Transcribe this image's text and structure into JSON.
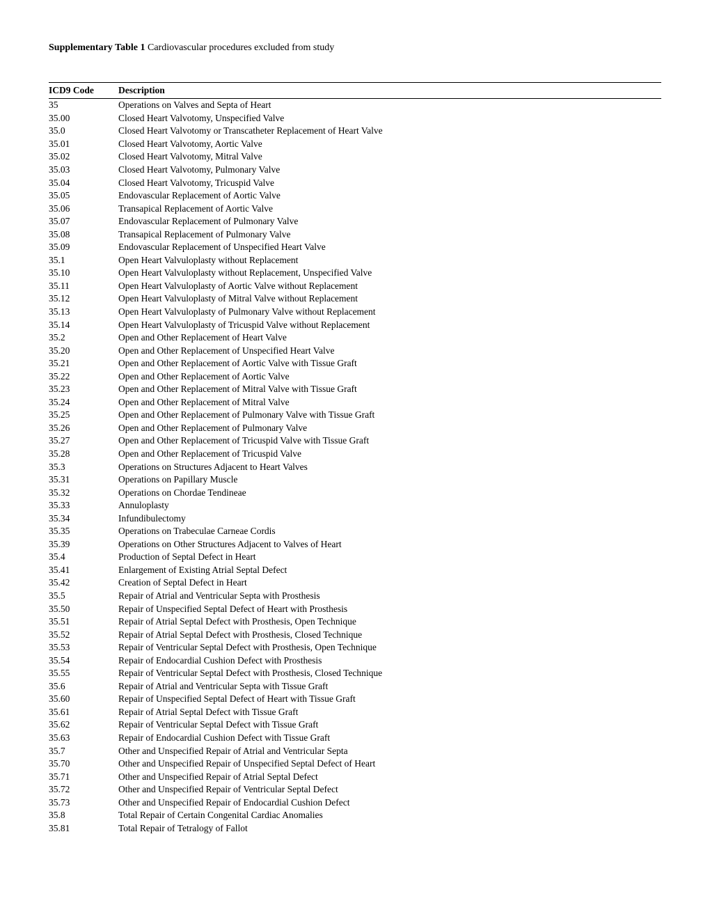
{
  "title_bold": "Supplementary Table 1",
  "title_rest": " Cardiovascular procedures excluded from study",
  "table": {
    "headers": {
      "code": "ICD9 Code",
      "desc": "Description"
    },
    "rows": [
      {
        "code": "35",
        "desc": "Operations on Valves and Septa of Heart"
      },
      {
        "code": "35.00",
        "desc": "Closed Heart Valvotomy, Unspecified Valve"
      },
      {
        "code": "35.0",
        "desc": "Closed Heart Valvotomy or Transcatheter Replacement of Heart Valve"
      },
      {
        "code": "35.01",
        "desc": "Closed Heart Valvotomy, Aortic Valve"
      },
      {
        "code": "35.02",
        "desc": "Closed Heart Valvotomy, Mitral Valve"
      },
      {
        "code": "35.03",
        "desc": "Closed Heart Valvotomy, Pulmonary Valve"
      },
      {
        "code": "35.04",
        "desc": "Closed Heart Valvotomy, Tricuspid Valve"
      },
      {
        "code": "35.05",
        "desc": "Endovascular Replacement of Aortic Valve"
      },
      {
        "code": "35.06",
        "desc": "Transapical Replacement of Aortic Valve"
      },
      {
        "code": "35.07",
        "desc": "Endovascular Replacement of Pulmonary Valve"
      },
      {
        "code": "35.08",
        "desc": "Transapical Replacement of Pulmonary Valve"
      },
      {
        "code": "35.09",
        "desc": "Endovascular Replacement of Unspecified Heart Valve"
      },
      {
        "code": "35.1",
        "desc": "Open Heart Valvuloplasty without Replacement"
      },
      {
        "code": "35.10",
        "desc": "Open Heart Valvuloplasty without Replacement, Unspecified Valve"
      },
      {
        "code": "35.11",
        "desc": "Open Heart Valvuloplasty of Aortic Valve without Replacement"
      },
      {
        "code": "35.12",
        "desc": "Open Heart Valvuloplasty of Mitral Valve without Replacement"
      },
      {
        "code": "35.13",
        "desc": "Open Heart Valvuloplasty of Pulmonary Valve without Replacement"
      },
      {
        "code": "35.14",
        "desc": "Open Heart Valvuloplasty of Tricuspid Valve without Replacement"
      },
      {
        "code": "35.2",
        "desc": "Open and Other Replacement of Heart Valve"
      },
      {
        "code": "35.20",
        "desc": "Open and Other Replacement of Unspecified Heart Valve"
      },
      {
        "code": "35.21",
        "desc": "Open and Other Replacement of Aortic Valve with Tissue Graft"
      },
      {
        "code": "35.22",
        "desc": "Open and Other Replacement of Aortic Valve"
      },
      {
        "code": "35.23",
        "desc": "Open and Other Replacement of Mitral Valve with Tissue Graft"
      },
      {
        "code": "35.24",
        "desc": "Open and Other Replacement of Mitral Valve"
      },
      {
        "code": "35.25",
        "desc": "Open and Other Replacement of Pulmonary Valve with Tissue Graft"
      },
      {
        "code": "35.26",
        "desc": "Open and Other Replacement of Pulmonary Valve"
      },
      {
        "code": "35.27",
        "desc": "Open and Other Replacement of Tricuspid Valve with Tissue Graft"
      },
      {
        "code": "35.28",
        "desc": "Open and Other Replacement of Tricuspid Valve"
      },
      {
        "code": "35.3",
        "desc": "Operations on Structures Adjacent to Heart Valves"
      },
      {
        "code": "35.31",
        "desc": "Operations on Papillary Muscle"
      },
      {
        "code": "35.32",
        "desc": "Operations on Chordae Tendineae"
      },
      {
        "code": "35.33",
        "desc": "Annuloplasty"
      },
      {
        "code": "35.34",
        "desc": "Infundibulectomy"
      },
      {
        "code": "35.35",
        "desc": "Operations on Trabeculae Carneae Cordis"
      },
      {
        "code": "35.39",
        "desc": "Operations on Other Structures Adjacent to Valves of Heart"
      },
      {
        "code": "35.4",
        "desc": "Production of Septal Defect in Heart"
      },
      {
        "code": "35.41",
        "desc": "Enlargement of Existing Atrial Septal Defect"
      },
      {
        "code": "35.42",
        "desc": "Creation of Septal Defect in Heart"
      },
      {
        "code": "35.5",
        "desc": "Repair of Atrial and Ventricular Septa with Prosthesis"
      },
      {
        "code": "35.50",
        "desc": "Repair of Unspecified Septal Defect of Heart with Prosthesis"
      },
      {
        "code": "35.51",
        "desc": "Repair of Atrial Septal Defect with Prosthesis, Open Technique"
      },
      {
        "code": "35.52",
        "desc": "Repair of Atrial Septal Defect with Prosthesis, Closed Technique"
      },
      {
        "code": "35.53",
        "desc": "Repair of Ventricular Septal Defect with Prosthesis, Open Technique"
      },
      {
        "code": "35.54",
        "desc": "Repair of Endocardial Cushion Defect with Prosthesis"
      },
      {
        "code": "35.55",
        "desc": "Repair of Ventricular Septal Defect with Prosthesis, Closed Technique"
      },
      {
        "code": "35.6",
        "desc": "Repair of Atrial and Ventricular Septa with Tissue Graft"
      },
      {
        "code": "35.60",
        "desc": "Repair of Unspecified Septal Defect of Heart with Tissue Graft"
      },
      {
        "code": "35.61",
        "desc": "Repair of Atrial Septal Defect with Tissue Graft"
      },
      {
        "code": "35.62",
        "desc": "Repair of Ventricular Septal Defect with Tissue Graft"
      },
      {
        "code": "35.63",
        "desc": "Repair of Endocardial Cushion Defect with Tissue Graft"
      },
      {
        "code": "35.7",
        "desc": "Other and Unspecified Repair of Atrial and Ventricular Septa"
      },
      {
        "code": "35.70",
        "desc": "Other and Unspecified Repair of Unspecified Septal Defect of Heart"
      },
      {
        "code": "35.71",
        "desc": "Other and Unspecified Repair of Atrial Septal Defect"
      },
      {
        "code": "35.72",
        "desc": "Other and Unspecified Repair of Ventricular Septal Defect"
      },
      {
        "code": "35.73",
        "desc": "Other and Unspecified Repair of Endocardial Cushion Defect"
      },
      {
        "code": "35.8",
        "desc": "Total Repair of Certain Congenital Cardiac Anomalies"
      },
      {
        "code": "35.81",
        "desc": "Total Repair of Tetralogy of Fallot"
      }
    ]
  }
}
